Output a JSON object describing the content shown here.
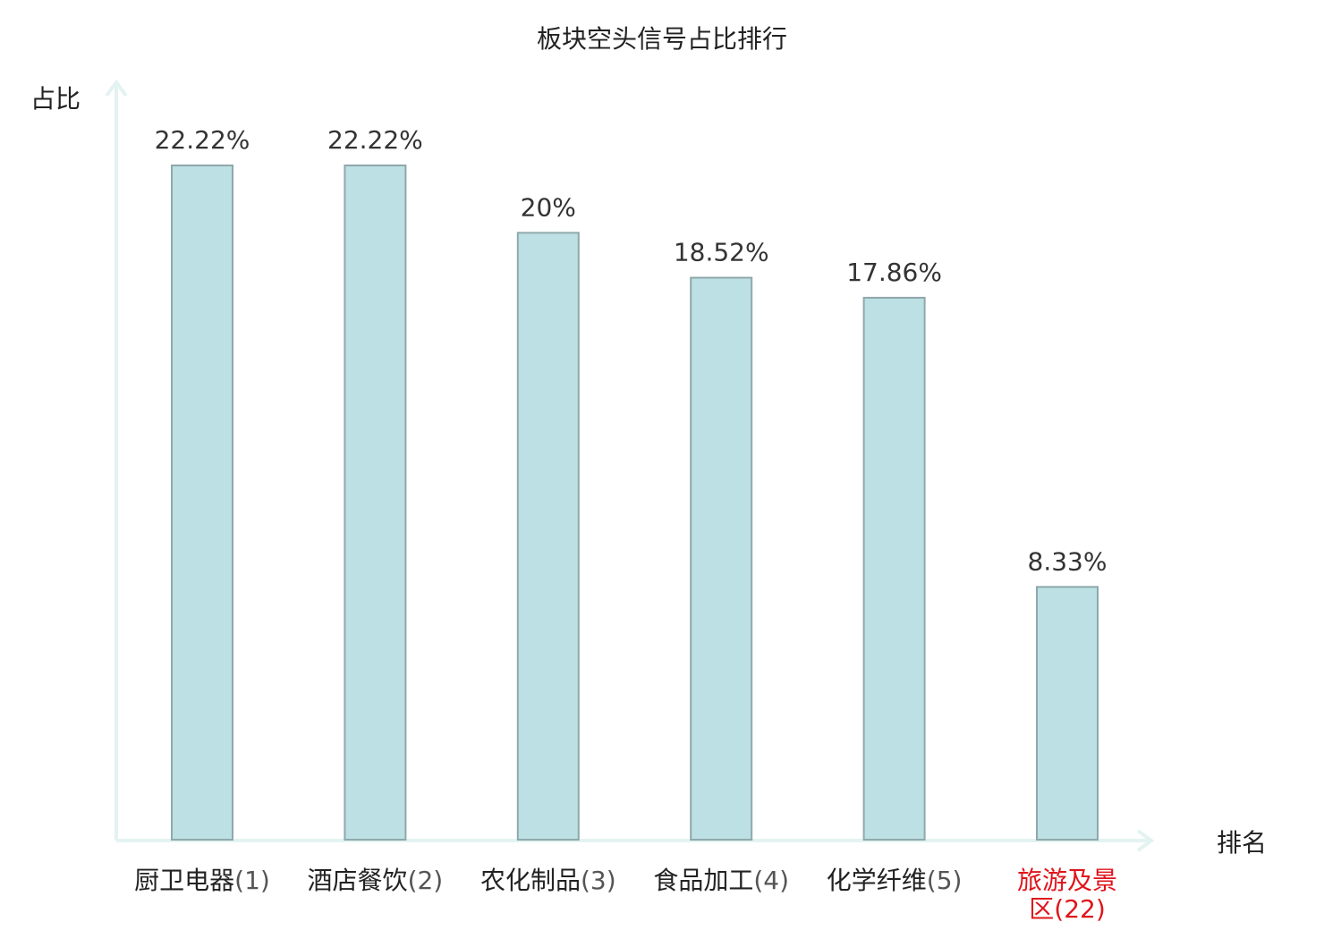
{
  "chart_data": {
    "type": "bar",
    "title": "板块空头信号占比排行",
    "ylabel": "占比",
    "xlabel": "排名",
    "ylim": [
      0,
      25
    ],
    "grid": false,
    "categories": [
      {
        "name": "厨卫电器",
        "rank": "(1)"
      },
      {
        "name": "酒店餐饮",
        "rank": "(2)"
      },
      {
        "name": "农化制品",
        "rank": "(3)"
      },
      {
        "name": "食品加工",
        "rank": "(4)"
      },
      {
        "name": "化学纤维",
        "rank": "(5)"
      },
      {
        "name": "旅游及景区",
        "rank": "(22)",
        "highlight": true
      }
    ],
    "values": [
      22.22,
      22.22,
      20,
      18.52,
      17.86,
      8.33
    ],
    "value_labels": [
      "22.22%",
      "22.22%",
      "20%",
      "18.52%",
      "17.86%",
      "8.33%"
    ],
    "colors": {
      "bar_fill": "#bce0e3",
      "bar_stroke": "#8fa8ab",
      "axis": "#e3f3f1",
      "highlight_text": "#e0141b"
    }
  }
}
